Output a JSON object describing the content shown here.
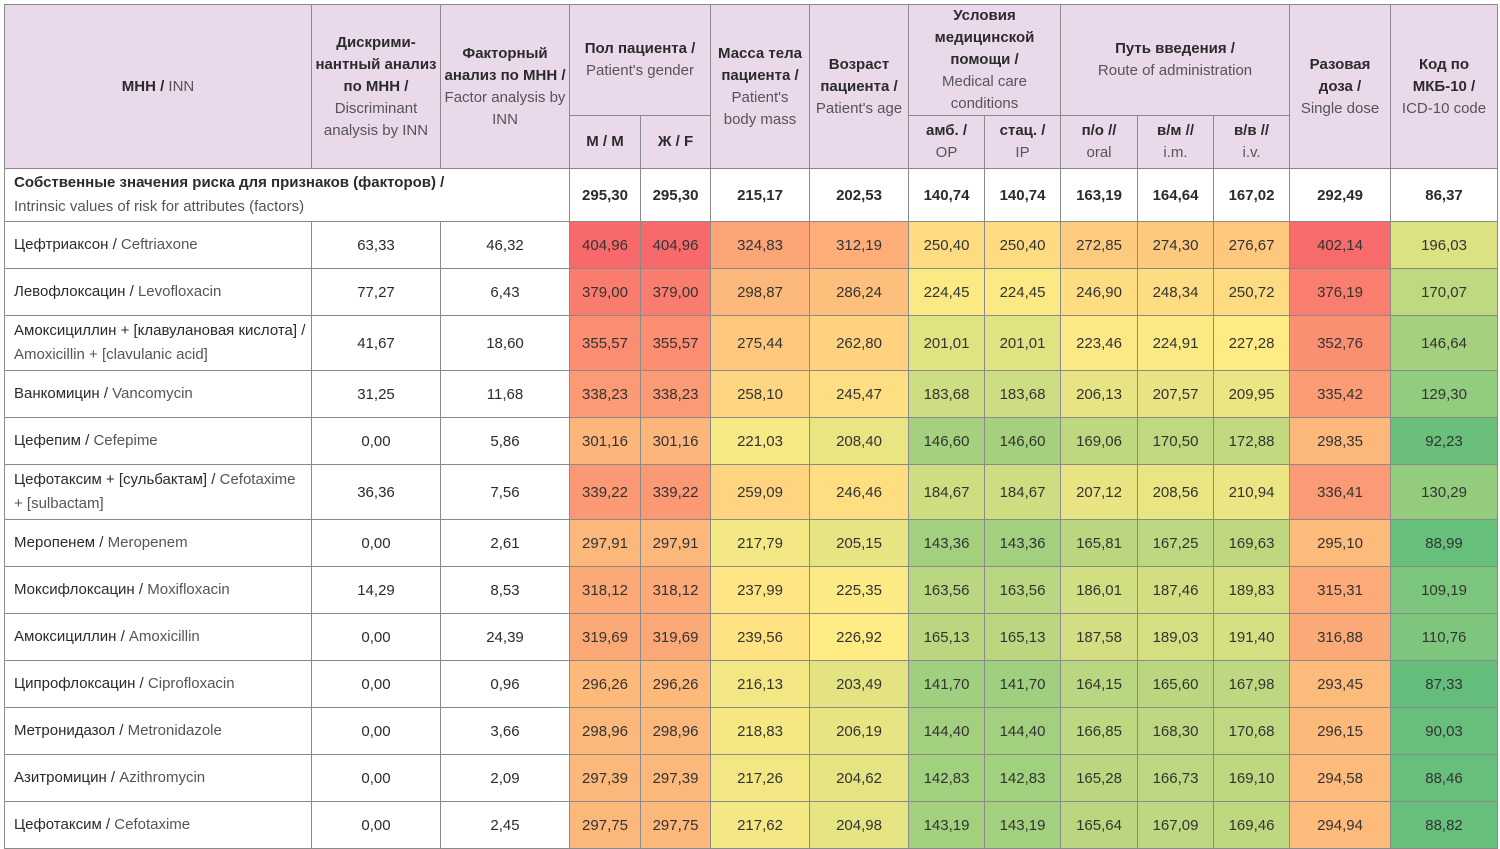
{
  "header": {
    "inn": {
      "ru": "МНН /",
      "en": " INN"
    },
    "discriminant": {
      "ru": "Дискрими-нантный анализ по МНН /",
      "en": "Discriminant analysis by INN"
    },
    "factor": {
      "ru": "Факторный анализ по МНН /",
      "en": "Factor analysis by INN"
    },
    "gender": {
      "ru": "Пол пациента /",
      "en": "Patient's gender"
    },
    "gender_m": "М / M",
    "gender_f": "Ж / F",
    "mass": {
      "ru": "Масса тела пациента /",
      "en": "Patient's body mass"
    },
    "age": {
      "ru": "Возраст пациента /",
      "en": "Patient's age"
    },
    "conditions": {
      "ru": "Условия медицинской помощи /",
      "en": "Medical care conditions"
    },
    "cond_op": {
      "ru": "амб. /",
      "en": "OP"
    },
    "cond_ip": {
      "ru": "стац. /",
      "en": "IP"
    },
    "route": {
      "ru": "Путь введения /",
      "en": "Route of administration"
    },
    "route_oral": {
      "ru": "п/о //",
      "en": "oral"
    },
    "route_im": {
      "ru": "в/м //",
      "en": "i.m."
    },
    "route_iv": {
      "ru": "в/в //",
      "en": "i.v."
    },
    "dose": {
      "ru": "Разовая доза /",
      "en": "Single dose"
    },
    "icd": {
      "ru": "Код по МКБ-10 /",
      "en": "ICD-10 code"
    }
  },
  "intrinsic": {
    "label_ru": "Собственные значения риска для признаков (факторов) /",
    "label_en": "Intrinsic values of risk for attributes (factors)",
    "values": [
      "295,30",
      "295,30",
      "215,17",
      "202,53",
      "140,74",
      "140,74",
      "163,19",
      "164,64",
      "167,02",
      "292,49",
      "86,37"
    ]
  },
  "rows": [
    {
      "ru": "Цефтриаксон /",
      "en": "Ceftriaxone",
      "disc": "63,33",
      "fact": "46,32",
      "vals": [
        "404,96",
        "404,96",
        "324,83",
        "312,19",
        "250,40",
        "250,40",
        "272,85",
        "274,30",
        "276,67",
        "402,14",
        "196,03"
      ]
    },
    {
      "ru": "Левофлоксацин /",
      "en": "Levofloxacin",
      "disc": "77,27",
      "fact": "6,43",
      "vals": [
        "379,00",
        "379,00",
        "298,87",
        "286,24",
        "224,45",
        "224,45",
        "246,90",
        "248,34",
        "250,72",
        "376,19",
        "170,07"
      ]
    },
    {
      "ru": "Амоксициллин + [клавулановая кислота] /",
      "en": "Amoxicillin + [clavulanic acid]",
      "disc": "41,67",
      "fact": "18,60",
      "vals": [
        "355,57",
        "355,57",
        "275,44",
        "262,80",
        "201,01",
        "201,01",
        "223,46",
        "224,91",
        "227,28",
        "352,76",
        "146,64"
      ]
    },
    {
      "ru": "Ванкомицин /",
      "en": "Vancomycin",
      "disc": "31,25",
      "fact": "11,68",
      "vals": [
        "338,23",
        "338,23",
        "258,10",
        "245,47",
        "183,68",
        "183,68",
        "206,13",
        "207,57",
        "209,95",
        "335,42",
        "129,30"
      ]
    },
    {
      "ru": "Цефепим /",
      "en": "Cefepime",
      "disc": "0,00",
      "fact": "5,86",
      "vals": [
        "301,16",
        "301,16",
        "221,03",
        "208,40",
        "146,60",
        "146,60",
        "169,06",
        "170,50",
        "172,88",
        "298,35",
        "92,23"
      ]
    },
    {
      "ru": "Цефотаксим + [сульбактам] /",
      "en": "Cefotaxime + [sulbactam]",
      "disc": "36,36",
      "fact": "7,56",
      "vals": [
        "339,22",
        "339,22",
        "259,09",
        "246,46",
        "184,67",
        "184,67",
        "207,12",
        "208,56",
        "210,94",
        "336,41",
        "130,29"
      ]
    },
    {
      "ru": "Меропенем /",
      "en": "Meropenem",
      "disc": "0,00",
      "fact": "2,61",
      "vals": [
        "297,91",
        "297,91",
        "217,79",
        "205,15",
        "143,36",
        "143,36",
        "165,81",
        "167,25",
        "169,63",
        "295,10",
        "88,99"
      ]
    },
    {
      "ru": "Моксифлоксацин /",
      "en": "Moxifloxacin",
      "disc": "14,29",
      "fact": "8,53",
      "vals": [
        "318,12",
        "318,12",
        "237,99",
        "225,35",
        "163,56",
        "163,56",
        "186,01",
        "187,46",
        "189,83",
        "315,31",
        "109,19"
      ]
    },
    {
      "ru": "Амоксициллин /",
      "en": "Amoxicillin",
      "disc": "0,00",
      "fact": "24,39",
      "vals": [
        "319,69",
        "319,69",
        "239,56",
        "226,92",
        "165,13",
        "165,13",
        "187,58",
        "189,03",
        "191,40",
        "316,88",
        "110,76"
      ]
    },
    {
      "ru": "Ципрофлоксацин /",
      "en": "Ciprofloxacin",
      "disc": "0,00",
      "fact": "0,96",
      "vals": [
        "296,26",
        "296,26",
        "216,13",
        "203,49",
        "141,70",
        "141,70",
        "164,15",
        "165,60",
        "167,98",
        "293,45",
        "87,33"
      ]
    },
    {
      "ru": "Метронидазол /",
      "en": "Metronidazole",
      "disc": "0,00",
      "fact": "3,66",
      "vals": [
        "298,96",
        "298,96",
        "218,83",
        "206,19",
        "144,40",
        "144,40",
        "166,85",
        "168,30",
        "170,68",
        "296,15",
        "90,03"
      ]
    },
    {
      "ru": "Азитромицин /",
      "en": "Azithromycin",
      "disc": "0,00",
      "fact": "2,09",
      "vals": [
        "297,39",
        "297,39",
        "217,26",
        "204,62",
        "142,83",
        "142,83",
        "165,28",
        "166,73",
        "169,10",
        "294,58",
        "88,46"
      ]
    },
    {
      "ru": "Цефотаксим /",
      "en": "Cefotaxime",
      "disc": "0,00",
      "fact": "2,45",
      "vals": [
        "297,75",
        "297,75",
        "217,62",
        "204,98",
        "143,19",
        "143,19",
        "165,64",
        "167,09",
        "169,46",
        "294,94",
        "88,82"
      ]
    }
  ],
  "colors": {
    "header_bg": "#ead9ea",
    "scale_low": "#63be7b",
    "scale_mid": "#ffeb84",
    "scale_high": "#f8696b"
  }
}
